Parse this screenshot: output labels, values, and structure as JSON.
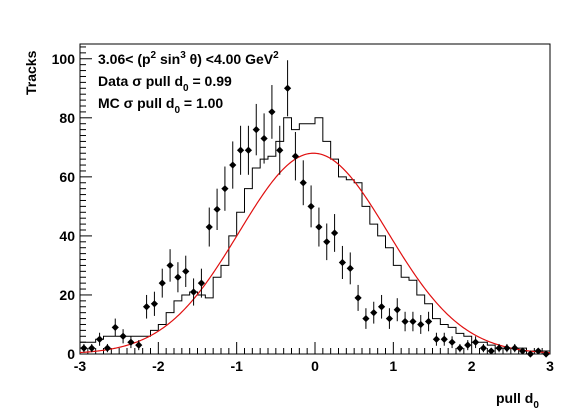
{
  "chart_data": {
    "type": "scatter",
    "xlabel": "pull d",
    "xlabel_sub": "0",
    "ylabel": "Tracks",
    "xlim": [
      -3,
      3
    ],
    "ylim": [
      0,
      105
    ],
    "x_ticks": [
      -3,
      -2,
      -1,
      0,
      1,
      2,
      3
    ],
    "y_ticks": [
      0,
      20,
      40,
      60,
      80,
      100
    ],
    "annotations": {
      "line1": {
        "a": "3.06< (p",
        "sup1": "2",
        "b": " sin",
        "sup2": "3",
        "c": " θ) <4.00 GeV",
        "sup3": "2"
      },
      "line2": {
        "a": "Data σ pull d",
        "sub": "0",
        "b": " = 0.99"
      },
      "line3": {
        "a": "MC σ pull d",
        "sub": "0",
        "b": " = 1.00"
      }
    },
    "data_points": {
      "x": [
        -2.95,
        -2.85,
        -2.75,
        -2.65,
        -2.55,
        -2.45,
        -2.35,
        -2.25,
        -2.15,
        -2.05,
        -1.95,
        -1.85,
        -1.75,
        -1.65,
        -1.55,
        -1.45,
        -1.35,
        -1.25,
        -1.15,
        -1.05,
        -0.95,
        -0.85,
        -0.75,
        -0.65,
        -0.55,
        -0.45,
        -0.35,
        -0.25,
        -0.15,
        -0.05,
        0.05,
        0.15,
        0.25,
        0.35,
        0.45,
        0.55,
        0.65,
        0.75,
        0.85,
        0.95,
        1.05,
        1.15,
        1.25,
        1.35,
        1.45,
        1.55,
        1.65,
        1.75,
        1.85,
        1.95,
        2.05,
        2.15,
        2.25,
        2.35,
        2.45,
        2.55,
        2.65,
        2.75,
        2.85,
        2.95
      ],
      "y": [
        2,
        2,
        5,
        2,
        9,
        6,
        4,
        3,
        16,
        17,
        24,
        30,
        26,
        28,
        21,
        24,
        43,
        49,
        56,
        64,
        69,
        69,
        76,
        73,
        82,
        69,
        90,
        67,
        58,
        50,
        43,
        38,
        41,
        31,
        29,
        19,
        12,
        14,
        16,
        12,
        15,
        11,
        11,
        10,
        11,
        5,
        5,
        4,
        2,
        3,
        4,
        2,
        1,
        2,
        2,
        2,
        1,
        0,
        1,
        0
      ],
      "err": [
        1.4,
        1.4,
        2.2,
        1.4,
        3,
        2.4,
        2,
        1.7,
        4,
        4.1,
        4.9,
        5.5,
        5.1,
        5.3,
        4.6,
        4.9,
        6.6,
        7,
        7.5,
        8,
        8.3,
        8.3,
        8.7,
        8.5,
        9.1,
        8.3,
        9.5,
        8.2,
        7.6,
        7.1,
        6.6,
        6.2,
        6.4,
        5.6,
        5.4,
        4.4,
        3.5,
        3.7,
        4,
        3.5,
        3.9,
        3.3,
        3.3,
        3.2,
        3.3,
        2.2,
        2.2,
        2,
        1.4,
        1.7,
        2,
        1.4,
        1,
        1.4,
        1.4,
        1.4,
        1,
        0,
        1,
        0
      ]
    },
    "mc_histogram": {
      "bin_edges": [
        -3.0,
        -2.9,
        -2.8,
        -2.7,
        -2.6,
        -2.5,
        -2.4,
        -2.3,
        -2.2,
        -2.1,
        -2.0,
        -1.9,
        -1.8,
        -1.7,
        -1.6,
        -1.5,
        -1.4,
        -1.3,
        -1.2,
        -1.1,
        -1.0,
        -0.9,
        -0.8,
        -0.7,
        -0.6,
        -0.5,
        -0.4,
        -0.3,
        -0.2,
        -0.1,
        0.0,
        0.1,
        0.2,
        0.3,
        0.4,
        0.5,
        0.6,
        0.7,
        0.8,
        0.9,
        1.0,
        1.1,
        1.2,
        1.3,
        1.4,
        1.5,
        1.6,
        1.7,
        1.8,
        1.9,
        2.0,
        2.1,
        2.2,
        2.3,
        2.4,
        2.5,
        2.6,
        2.7,
        2.8,
        2.9,
        3.0
      ],
      "values": [
        4,
        4,
        5,
        6,
        6,
        6,
        6,
        6,
        6,
        8,
        10,
        14,
        18,
        20,
        21,
        20,
        19,
        26,
        30,
        40,
        48,
        56,
        63,
        66,
        67,
        72,
        80,
        76,
        78,
        78,
        80,
        72,
        66,
        60,
        59,
        58,
        50,
        44,
        40,
        36,
        30,
        26,
        25,
        20,
        17,
        12,
        10,
        9,
        7,
        6,
        4,
        4,
        3,
        2,
        2,
        2,
        2,
        1,
        1,
        1
      ]
    },
    "fit": {
      "type": "gaussian",
      "amplitude": 68,
      "mean": -0.02,
      "sigma": 0.95
    },
    "colors": {
      "data": "#000000",
      "mc": "#000000",
      "fit": "#e01010",
      "frame": "#000000"
    },
    "grid": false,
    "legend": "none"
  }
}
